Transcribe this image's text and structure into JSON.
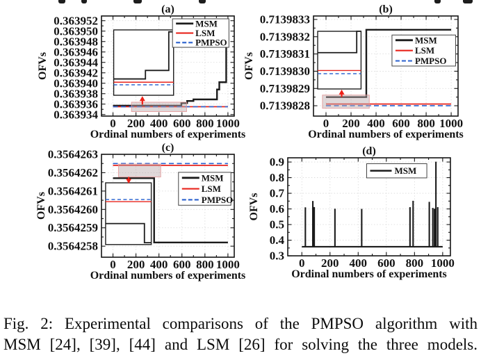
{
  "caption": {
    "line1": "Fig. 2: Experimental comparisons of the PMPSO algorithm with",
    "line2": "MSM [24], [39], [44] and LSM [26] for solving the three models."
  },
  "colors": {
    "msm": "#1b1b1b",
    "lsm": "#e8241c",
    "pmpso": "#3468d0",
    "arrow": "#ee2118",
    "shade_fill": "rgba(186,168,170,0.45)",
    "shade_edge": "rgba(228,150,150,0.85)",
    "grid": "#d8d8d8",
    "axis": "#141414",
    "legend_border": "#444444"
  },
  "top_fragments": [
    {
      "x": 84,
      "w": 10
    },
    {
      "x": 117,
      "w": 8
    },
    {
      "x": 192,
      "w": 12
    },
    {
      "x": 286,
      "w": 10
    },
    {
      "x": 625,
      "w": 9
    },
    {
      "x": 666,
      "w": 14
    }
  ],
  "chart_data": [
    {
      "id": "a",
      "type": "line",
      "title": "(a)",
      "xlabel": "Ordinal numbers of experiments",
      "ylabel": "OFVs",
      "xlim": [
        -100,
        1055
      ],
      "ylim": [
        0.3639337,
        0.3639529
      ],
      "xticks": [
        0,
        200,
        400,
        600,
        800,
        1000
      ],
      "yticks": [
        [
          0.363934,
          "0.363934"
        ],
        [
          0.363936,
          "0.363936"
        ],
        [
          0.363938,
          "0.363938"
        ],
        [
          0.36394,
          "0.363940"
        ],
        [
          0.363942,
          "0.363942"
        ],
        [
          0.363944,
          "0.363944"
        ],
        [
          0.363946,
          "0.363946"
        ],
        [
          0.363948,
          "0.363948"
        ],
        [
          0.36395,
          "0.363950"
        ],
        [
          0.363952,
          "0.363952"
        ]
      ],
      "series": [
        {
          "name": "MSM",
          "color": "msm",
          "width": 2.4,
          "points": [
            [
              0,
              0.3639357
            ],
            [
              595,
              0.3639357
            ],
            [
              595,
              0.3639362
            ],
            [
              645,
              0.3639362
            ],
            [
              645,
              0.3639366
            ],
            [
              700,
              0.3639366
            ],
            [
              700,
              0.3639369
            ],
            [
              905,
              0.3639369
            ],
            [
              905,
              0.3639388
            ],
            [
              925,
              0.3639388
            ],
            [
              925,
              0.3639402
            ],
            [
              985,
              0.3639402
            ],
            [
              985,
              0.3639517
            ],
            [
              1000,
              0.3639517
            ]
          ]
        },
        {
          "name": "LSM",
          "color": "lsm",
          "width": 1.7,
          "points": [
            [
              0,
              0.3639355
            ],
            [
              1000,
              0.3639355
            ]
          ]
        },
        {
          "name": "PMPSO",
          "color": "pmpso",
          "width": 1.8,
          "dash": "7,4.5",
          "points": [
            [
              0,
              0.3639355
            ],
            [
              1000,
              0.3639355
            ]
          ]
        }
      ],
      "legend": {
        "x": 0.535,
        "y": 0.028,
        "w": 0.425,
        "h": 0.285
      },
      "inset": {
        "x": 0.092,
        "y": 0.139,
        "w": 0.451,
        "h": 0.653,
        "lines": [
          {
            "color": "msm",
            "width": 1.8,
            "pts": [
              [
                0,
                0.75
              ],
              [
                0.53,
                0.75
              ],
              [
                0.53,
                0.62
              ],
              [
                0.92,
                0.62
              ],
              [
                0.92,
                0.03
              ],
              [
                1,
                0.03
              ]
            ]
          },
          {
            "color": "lsm",
            "width": 1.4,
            "pts": [
              [
                0,
                0.8
              ],
              [
                1,
                0.8
              ]
            ]
          },
          {
            "color": "pmpso",
            "width": 1.5,
            "dash": "5,3.5",
            "pts": [
              [
                0,
                0.84
              ],
              [
                1,
                0.84
              ]
            ]
          }
        ]
      },
      "shade": {
        "x": 0.226,
        "y": 0.861,
        "w": 0.415,
        "h": 0.094
      },
      "arrow": {
        "x": 0.308,
        "y_tail": 0.885,
        "y_head": 0.8,
        "dir": "up"
      }
    },
    {
      "id": "b",
      "type": "line",
      "title": "(b)",
      "xlabel": "Ordinal numbers of experiments",
      "ylabel": "OFVs",
      "xlim": [
        -100,
        1055
      ],
      "ylim": [
        0.71398274,
        0.71398332
      ],
      "xticks": [
        0,
        200,
        400,
        600,
        800,
        1000
      ],
      "yticks": [
        [
          0.7139828,
          "0.7139828"
        ],
        [
          0.7139829,
          "0.7139829"
        ],
        [
          0.713983,
          "0.7139830"
        ],
        [
          0.7139831,
          "0.7139831"
        ],
        [
          0.7139832,
          "0.7139832"
        ],
        [
          0.7139833,
          "0.7139833"
        ]
      ],
      "series": [
        {
          "name": "MSM",
          "color": "msm",
          "width": 2.4,
          "points": [
            [
              0,
              0.71398285
            ],
            [
              322,
              0.71398285
            ],
            [
              322,
              0.71398324
            ],
            [
              1000,
              0.71398324
            ]
          ]
        },
        {
          "name": "LSM",
          "color": "lsm",
          "width": 1.7,
          "points": [
            [
              0,
              0.71398281
            ],
            [
              1000,
              0.71398281
            ]
          ]
        },
        {
          "name": "PMPSO",
          "color": "pmpso",
          "width": 1.8,
          "dash": "7,4.5",
          "points": [
            [
              0,
              0.7139828
            ],
            [
              1000,
              0.7139828
            ]
          ]
        }
      ],
      "legend": {
        "x": 0.543,
        "y": 0.19,
        "w": 0.44,
        "h": 0.31
      },
      "inset": {
        "x": 0.029,
        "y": 0.153,
        "w": 0.3,
        "h": 0.576,
        "lines": [
          {
            "color": "msm",
            "width": 1.8,
            "pts": [
              [
                0,
                0.37
              ],
              [
                0.9,
                0.37
              ],
              [
                0.9,
                0.0
              ],
              [
                1,
                0.0
              ]
            ]
          },
          {
            "color": "lsm",
            "width": 1.4,
            "pts": [
              [
                0,
                0.68
              ],
              [
                1,
                0.68
              ]
            ]
          },
          {
            "color": "pmpso",
            "width": 1.5,
            "dash": "5,3.5",
            "pts": [
              [
                0,
                0.735
              ],
              [
                1,
                0.735
              ]
            ]
          }
        ]
      },
      "shade": {
        "x": 0.062,
        "y": 0.79,
        "w": 0.324,
        "h": 0.132
      },
      "arrow": {
        "x": 0.195,
        "y_tail": 0.81,
        "y_head": 0.735,
        "dir": "up"
      }
    },
    {
      "id": "c",
      "type": "line",
      "title": "(c)",
      "xlabel": "Ordinal numbers of experiments",
      "ylabel": "OFVs",
      "xlim": [
        -100,
        1055
      ],
      "ylim": [
        0.35642574,
        0.3564263
      ],
      "xticks": [
        0,
        200,
        400,
        600,
        800,
        1000
      ],
      "yticks": [
        [
          0.3564258,
          "0.3564258"
        ],
        [
          0.3564259,
          "0.3564259"
        ],
        [
          0.356426,
          "0.3564260"
        ],
        [
          0.3564261,
          "0.3564261"
        ],
        [
          0.3564262,
          "0.3564262"
        ],
        [
          0.3564263,
          "0.3564263"
        ]
      ],
      "series": [
        {
          "name": "MSM",
          "color": "msm",
          "width": 2.4,
          "points": [
            [
              0,
              0.35642617
            ],
            [
              358,
              0.35642617
            ],
            [
              358,
              0.35642582
            ],
            [
              1000,
              0.35642582
            ]
          ]
        },
        {
          "name": "LSM",
          "color": "lsm",
          "width": 1.7,
          "points": [
            [
              0,
              0.35642624
            ],
            [
              1000,
              0.35642624
            ]
          ]
        },
        {
          "name": "PMPSO",
          "color": "pmpso",
          "width": 1.8,
          "dash": "7,4.5",
          "points": [
            [
              0,
              0.35642625
            ],
            [
              1000,
              0.35642625
            ]
          ]
        }
      ],
      "legend": {
        "x": 0.58,
        "y": 0.175,
        "w": 0.395,
        "h": 0.32
      },
      "inset": {
        "x": 0.031,
        "y": 0.277,
        "w": 0.344,
        "h": 0.6,
        "lines": [
          {
            "color": "pmpso",
            "width": 1.5,
            "dash": "5,3.5",
            "pts": [
              [
                0,
                0.27
              ],
              [
                1,
                0.27
              ]
            ]
          },
          {
            "color": "lsm",
            "width": 1.4,
            "pts": [
              [
                0,
                0.305
              ],
              [
                1,
                0.305
              ]
            ]
          },
          {
            "color": "msm",
            "width": 1.8,
            "pts": [
              [
                0,
                0.66
              ],
              [
                0.85,
                0.66
              ],
              [
                0.85,
                0.97
              ],
              [
                1,
                0.97
              ]
            ]
          }
        ]
      },
      "shade": {
        "x": 0.128,
        "y": 0.095,
        "w": 0.318,
        "h": 0.125
      },
      "arrow": {
        "x": 0.205,
        "y_tail": 0.22,
        "y_head": 0.285,
        "dir": "down"
      }
    },
    {
      "id": "d",
      "type": "line",
      "title": "(d)",
      "xlabel": "Ordinal numbers of experiments",
      "ylabel": "OFVs",
      "xlim": [
        -100,
        1055
      ],
      "ylim": [
        0.3,
        0.927
      ],
      "xticks": [
        0,
        200,
        400,
        600,
        800,
        1000
      ],
      "yticks": [
        [
          0.3,
          "0.3"
        ],
        [
          0.4,
          "0.4"
        ],
        [
          0.5,
          "0.5"
        ],
        [
          0.6,
          "0.6"
        ],
        [
          0.7,
          "0.7"
        ],
        [
          0.8,
          "0.8"
        ],
        [
          0.9,
          "0.9"
        ]
      ],
      "series": [
        {
          "name": "MSM",
          "color": "msm",
          "width": 2.1,
          "baseline": 0.358,
          "x_start": 0,
          "x_end": 1000,
          "spikes": [
            [
              25,
              0.61
            ],
            [
              78,
              0.651
            ],
            [
              88,
              0.612
            ],
            [
              235,
              0.601
            ],
            [
              425,
              0.6
            ],
            [
              768,
              0.611
            ],
            [
              790,
              0.652
            ],
            [
              905,
              0.645
            ],
            [
              930,
              0.606
            ],
            [
              942,
              0.601
            ],
            [
              952,
              0.902
            ],
            [
              965,
              0.611
            ]
          ]
        }
      ],
      "legend": {
        "x": 0.485,
        "y": 0.06,
        "w": 0.37,
        "h": 0.145
      }
    }
  ]
}
